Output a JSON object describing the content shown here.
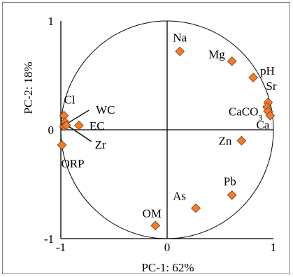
{
  "chart_data": {
    "type": "scatter",
    "xlabel": "PC-1: 62%",
    "ylabel": "PC-2: 18%",
    "xlim": [
      -1,
      1
    ],
    "ylim": [
      -1,
      1
    ],
    "x_ticks": [
      "-1",
      "0",
      "1"
    ],
    "y_ticks": [
      "1",
      "0",
      "-1"
    ],
    "grid": false,
    "marker_color": "#ed7d31",
    "marker_edge": "#7a3a10",
    "unit_circle": true,
    "points": [
      {
        "label": "Na",
        "x": 0.12,
        "y": 0.72
      },
      {
        "label": "Mg",
        "x": 0.61,
        "y": 0.63
      },
      {
        "label": "pH",
        "x": 0.81,
        "y": 0.48
      },
      {
        "label": "Sr",
        "x": 0.95,
        "y": 0.25
      },
      {
        "label": "",
        "x": 0.94,
        "y": 0.21
      },
      {
        "label": "CaCO3",
        "x": 0.95,
        "y": 0.17
      },
      {
        "label": "Ca",
        "x": 0.97,
        "y": 0.13
      },
      {
        "label": "Zn",
        "x": 0.7,
        "y": -0.1
      },
      {
        "label": "Pb",
        "x": 0.61,
        "y": -0.6
      },
      {
        "label": "As",
        "x": 0.27,
        "y": -0.72
      },
      {
        "label": "OM",
        "x": -0.11,
        "y": -0.88
      },
      {
        "label": "Cl",
        "x": -0.97,
        "y": 0.13
      },
      {
        "label": "WC",
        "x": -0.96,
        "y": 0.07
      },
      {
        "label": "",
        "x": -0.97,
        "y": 0.03
      },
      {
        "label": "EC",
        "x": -0.83,
        "y": 0.04
      },
      {
        "label": "Zr",
        "x": -0.95,
        "y": 0.04
      },
      {
        "label": "ORP",
        "x": -0.99,
        "y": -0.14
      }
    ]
  }
}
